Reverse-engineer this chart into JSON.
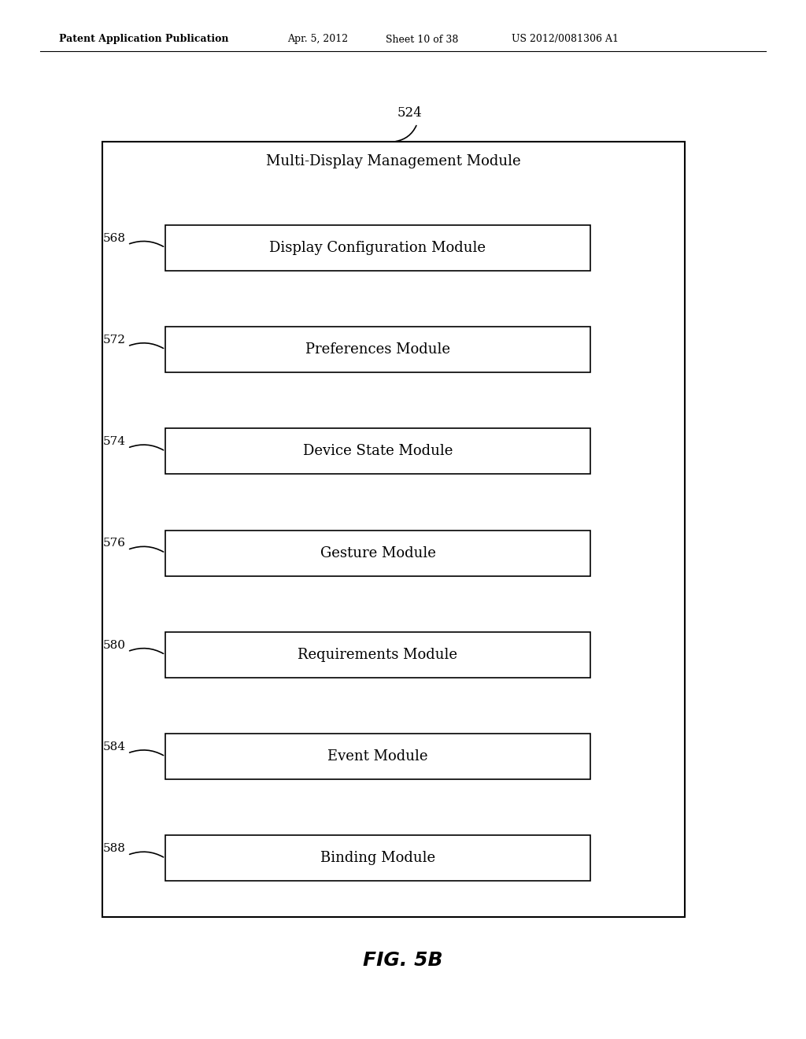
{
  "bg_color": "#ffffff",
  "header_text": "Patent Application Publication",
  "header_date": "Apr. 5, 2012",
  "header_sheet": "Sheet 10 of 38",
  "header_patent": "US 2012/0081306 A1",
  "fig_label": "FIG. 5B",
  "outer_box_label": "524",
  "outer_box_title": "Multi-Display Management Module",
  "modules": [
    {
      "label": "568",
      "text": "Display Configuration Module"
    },
    {
      "label": "572",
      "text": "Preferences Module"
    },
    {
      "label": "574",
      "text": "Device State Module"
    },
    {
      "label": "576",
      "text": "Gesture Module"
    },
    {
      "label": "580",
      "text": "Requirements Module"
    },
    {
      "label": "584",
      "text": "Event Module"
    },
    {
      "label": "588",
      "text": "Binding Module"
    }
  ]
}
